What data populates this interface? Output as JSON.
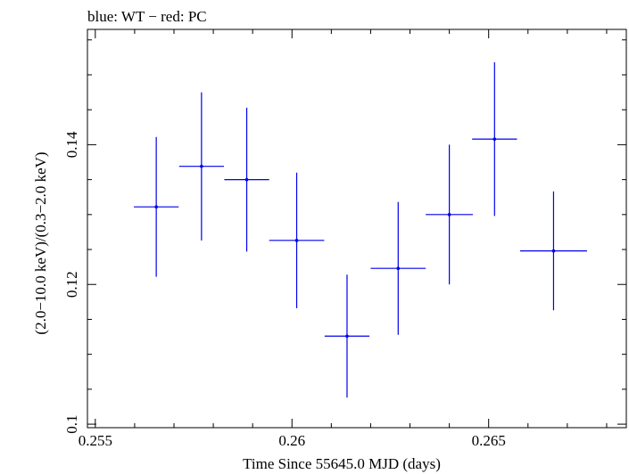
{
  "chart_data": {
    "type": "scatter",
    "title": "blue: WT − red: PC",
    "xlabel": "Time Since 55645.0 MJD (days)",
    "ylabel": "(2.0−10.0 keV)/(0.3−2.0 keV)",
    "xlim": [
      0.2548,
      0.2685
    ],
    "ylim": [
      0.0995,
      0.1565
    ],
    "x_ticks": [
      {
        "value": 0.255,
        "label": "0.255"
      },
      {
        "value": 0.26,
        "label": "0.26"
      },
      {
        "value": 0.265,
        "label": "0.265"
      }
    ],
    "y_ticks": [
      {
        "value": 0.1,
        "label": "0.1"
      },
      {
        "value": 0.12,
        "label": "0.12"
      },
      {
        "value": 0.14,
        "label": "0.14"
      }
    ],
    "grid": false,
    "series": [
      {
        "name": "WT",
        "color": "#0000ee",
        "points": [
          {
            "x": 0.25655,
            "xerr": 0.00057,
            "y": 0.1311,
            "yerr": 0.01
          },
          {
            "x": 0.2577,
            "xerr": 0.00057,
            "y": 0.1369,
            "yerr": 0.0106
          },
          {
            "x": 0.25885,
            "xerr": 0.00057,
            "y": 0.135,
            "yerr": 0.0103
          },
          {
            "x": 0.26012,
            "xerr": 0.0007,
            "y": 0.1263,
            "yerr": 0.0097
          },
          {
            "x": 0.2614,
            "xerr": 0.00057,
            "y": 0.1126,
            "yerr": 0.0088
          },
          {
            "x": 0.2627,
            "xerr": 0.0007,
            "y": 0.1223,
            "yerr": 0.0095
          },
          {
            "x": 0.264,
            "xerr": 0.0006,
            "y": 0.13,
            "yerr": 0.01
          },
          {
            "x": 0.26515,
            "xerr": 0.00057,
            "y": 0.1408,
            "yerr": 0.011
          },
          {
            "x": 0.26665,
            "xerr": 0.00085,
            "y": 0.1248,
            "yerr": 0.0085
          }
        ]
      }
    ]
  }
}
